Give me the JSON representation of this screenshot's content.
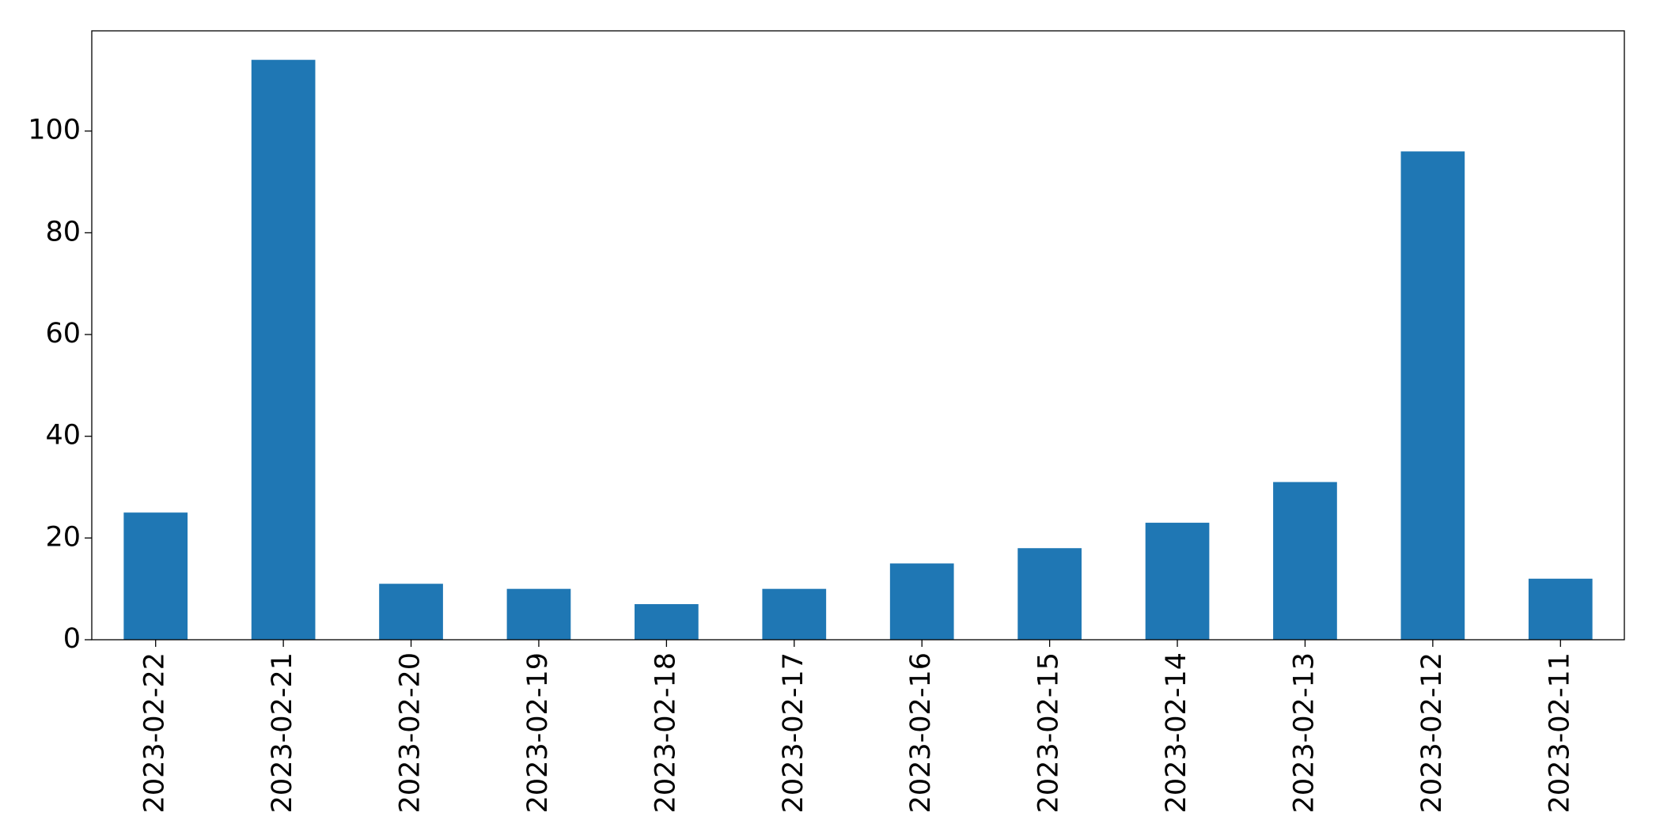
{
  "chart_data": {
    "type": "bar",
    "categories": [
      "2023-02-22",
      "2023-02-21",
      "2023-02-20",
      "2023-02-19",
      "2023-02-18",
      "2023-02-17",
      "2023-02-16",
      "2023-02-15",
      "2023-02-14",
      "2023-02-13",
      "2023-02-12",
      "2023-02-11"
    ],
    "values": [
      25,
      114,
      11,
      10,
      7,
      10,
      15,
      18,
      23,
      31,
      96,
      12
    ],
    "color": "#1f77b4",
    "ylim": [
      0,
      119.7
    ],
    "yticks": [
      0,
      20,
      40,
      60,
      80,
      100
    ],
    "grid": false
  }
}
